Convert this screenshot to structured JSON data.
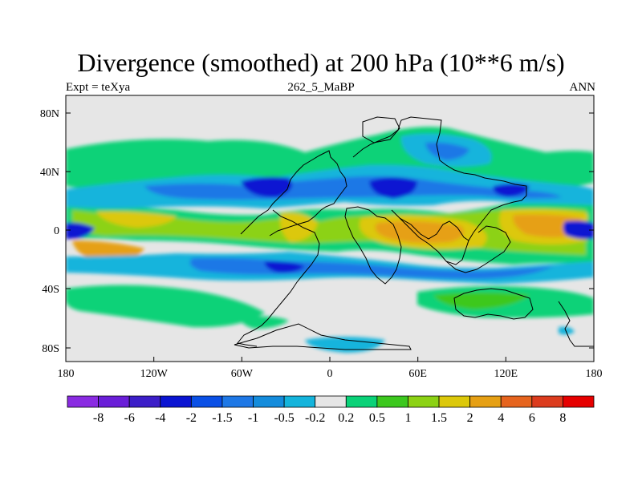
{
  "title": "Divergence (smoothed) at 200 hPa (10**6 m/s)",
  "subtitle_left": "Expt = teXya",
  "subtitle_center": "262_5_MaBP",
  "subtitle_right": "ANN",
  "map_data": {
    "projection": "cylindrical equidistant",
    "lon_range": [
      -180,
      180
    ],
    "lat_range": [
      -90,
      90
    ],
    "x_tick_labels": [
      "180",
      "120W",
      "60W",
      "0",
      "60E",
      "120E",
      "180"
    ],
    "y_tick_labels": [
      "80N",
      "40N",
      "0",
      "40S",
      "80S"
    ],
    "colorbar": {
      "labels": [
        "-8",
        "-6",
        "-4",
        "-2",
        "-1.5",
        "-1",
        "-0.5",
        "-0.2",
        "0.2",
        "0.5",
        "1",
        "1.5",
        "2",
        "4",
        "6",
        "8"
      ],
      "colors": [
        "#8a2be2",
        "#6a1ed8",
        "#3c1ec8",
        "#0a14d2",
        "#0a50e6",
        "#1e78e6",
        "#148cdc",
        "#14b4dc",
        "#e6e6e6",
        "#0ad278",
        "#3cc81e",
        "#8cd214",
        "#dcc80a",
        "#e6a014",
        "#e6641e",
        "#dc3c1e",
        "#e60000"
      ]
    },
    "features": [
      "continental outlines",
      "shaded divergence field"
    ]
  }
}
